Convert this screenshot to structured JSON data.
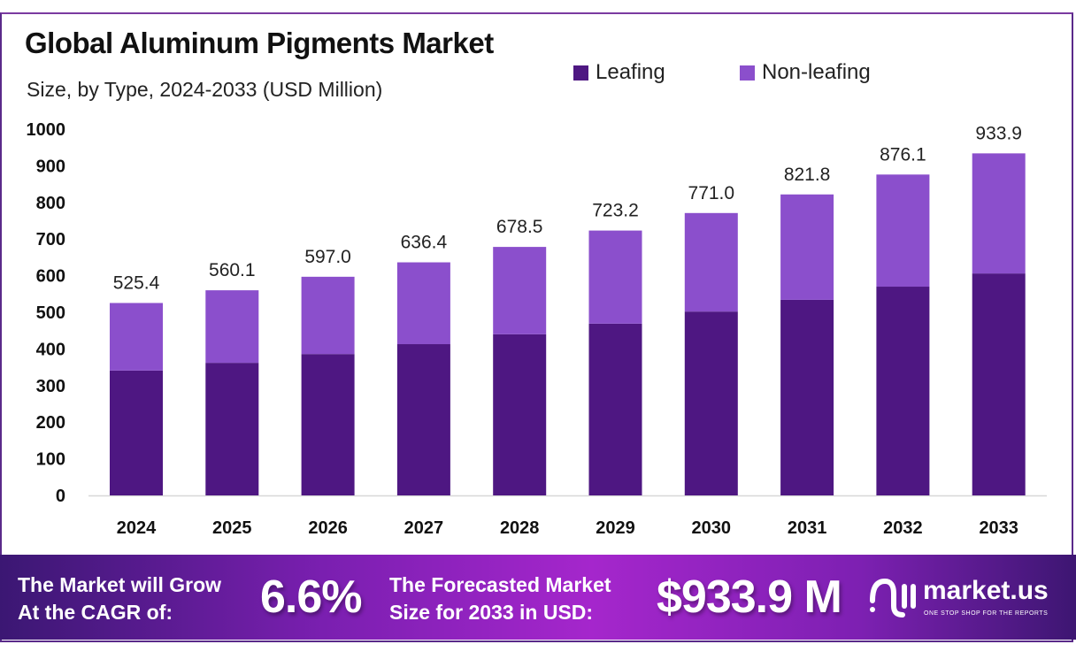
{
  "chart_data": {
    "type": "bar",
    "stacked": true,
    "title": "Global Aluminum Pigments Market",
    "subtitle": "Size, by Type, 2024-2033 (USD Million)",
    "categories": [
      "2024",
      "2025",
      "2026",
      "2027",
      "2028",
      "2029",
      "2030",
      "2031",
      "2032",
      "2033"
    ],
    "series": [
      {
        "name": "Leafing",
        "color": "#4e1782",
        "values": [
          341,
          362,
          386,
          413,
          440,
          469,
          502,
          534,
          570,
          606
        ]
      },
      {
        "name": "Non-leafing",
        "color": "#8b4fcc",
        "values": [
          184.4,
          198.1,
          211.0,
          223.4,
          238.5,
          254.2,
          269.0,
          287.8,
          306.1,
          327.9
        ]
      }
    ],
    "totals": [
      "525.4",
      "560.1",
      "597.0",
      "636.4",
      "678.5",
      "723.2",
      "771.0",
      "821.8",
      "876.1",
      "933.9"
    ],
    "yticks": [
      "0",
      "100",
      "200",
      "300",
      "400",
      "500",
      "600",
      "700",
      "800",
      "900",
      "1000"
    ],
    "ylim": [
      0,
      1000
    ],
    "grid": false,
    "legend_position": "top-right"
  },
  "banner": {
    "cagr_label_line1": "The Market will Grow",
    "cagr_label_line2": "At the CAGR of:",
    "cagr_value": "6.6%",
    "forecast_label_line1": "The Forecasted Market",
    "forecast_label_line2": "Size for 2033 in USD:",
    "forecast_value": "$933.9 M",
    "logo_name": "market.us",
    "logo_tagline": "ONE STOP SHOP FOR THE REPORTS"
  }
}
